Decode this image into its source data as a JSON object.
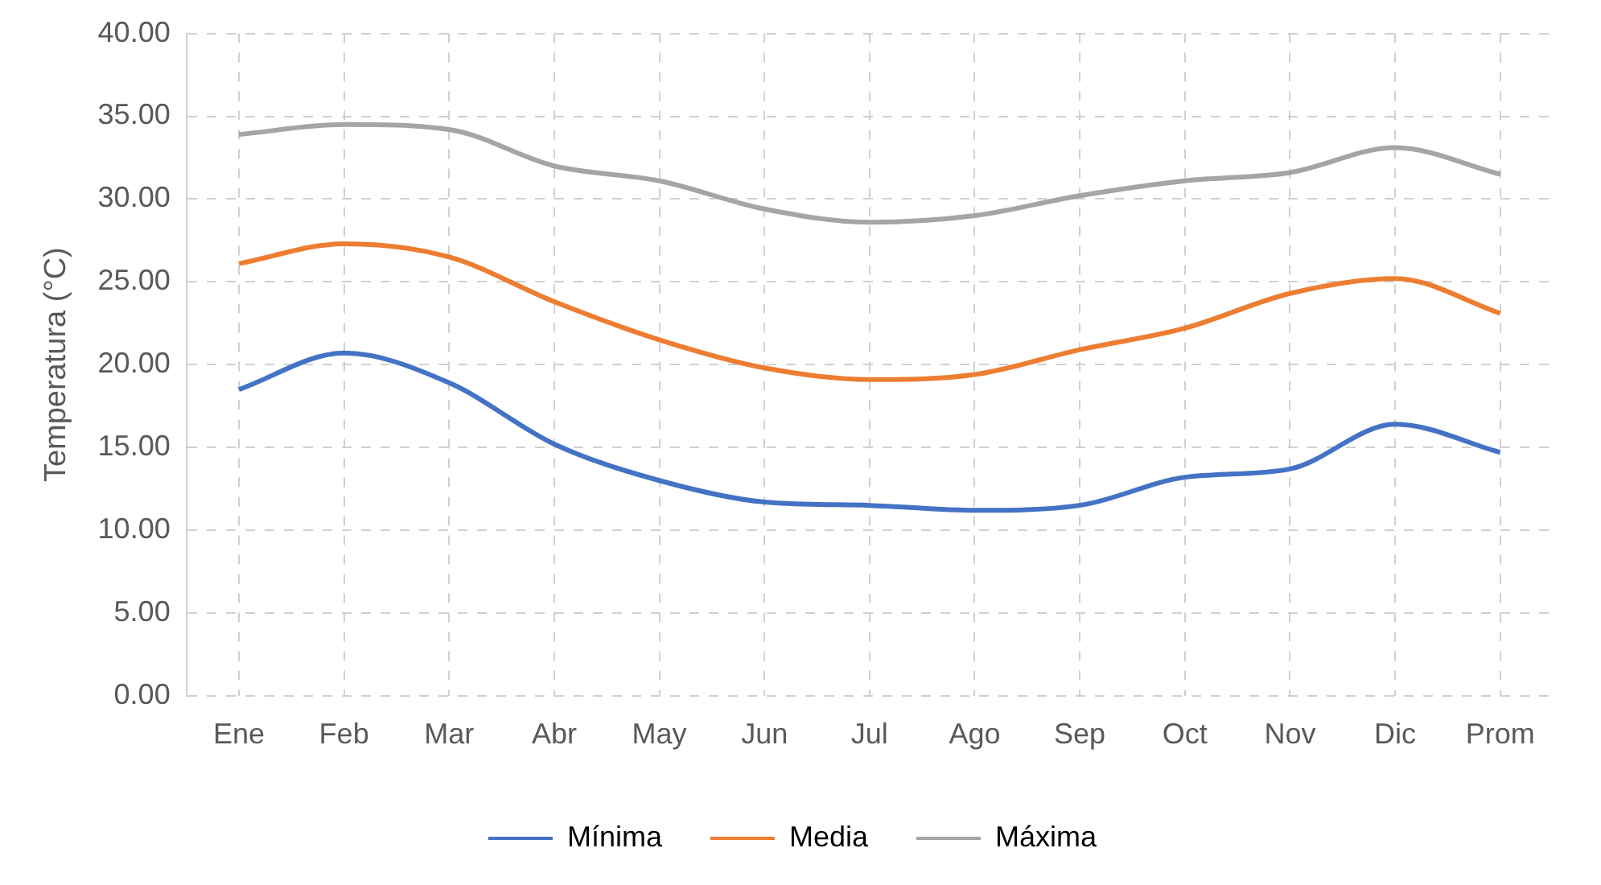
{
  "chart_data": {
    "type": "line",
    "ylabel": "Temperatura (°C)",
    "categories": [
      "Ene",
      "Feb",
      "Mar",
      "Abr",
      "May",
      "Jun",
      "Jul",
      "Ago",
      "Sep",
      "Oct",
      "Nov",
      "Dic",
      "Prom"
    ],
    "series": [
      {
        "name": "Mínima",
        "color": "#4472c4",
        "values": [
          18.5,
          20.7,
          18.9,
          15.2,
          13.0,
          11.7,
          11.5,
          11.2,
          11.5,
          13.2,
          13.7,
          16.4,
          14.7
        ]
      },
      {
        "name": "Media",
        "color": "#ed7d31",
        "values": [
          26.1,
          27.3,
          26.5,
          23.8,
          21.5,
          19.8,
          19.1,
          19.4,
          20.9,
          22.2,
          24.3,
          25.2,
          23.1
        ]
      },
      {
        "name": "Máxima",
        "color": "#a5a5a5",
        "values": [
          33.9,
          34.5,
          34.2,
          32.0,
          31.1,
          29.4,
          28.6,
          29.0,
          30.2,
          31.1,
          31.6,
          33.1,
          31.5
        ]
      }
    ],
    "ylim": [
      0,
      40
    ],
    "yticks": [
      {
        "value": 0,
        "label": "0.00"
      },
      {
        "value": 5,
        "label": "5.00"
      },
      {
        "value": 10,
        "label": "10.00"
      },
      {
        "value": 15,
        "label": "15.00"
      },
      {
        "value": 20,
        "label": "20.00"
      },
      {
        "value": 25,
        "label": "25.00"
      },
      {
        "value": 30,
        "label": "30.00"
      },
      {
        "value": 35,
        "label": "35.00"
      },
      {
        "value": 40,
        "label": "40.00"
      }
    ],
    "grid": true,
    "legend": "bottom",
    "marker": "none",
    "line_style": "solid"
  }
}
